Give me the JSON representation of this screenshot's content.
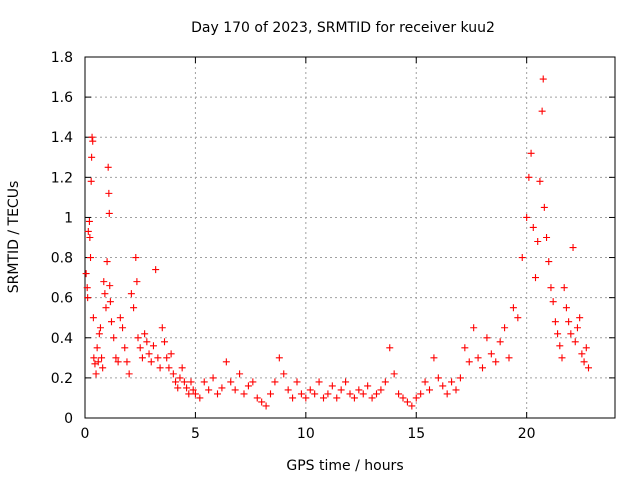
{
  "chart_data": {
    "type": "scatter",
    "title": "Day 170 of 2023, SRMTID for receiver kuu2",
    "xlabel": "GPS time / hours",
    "ylabel": "SRMTID / TECUs",
    "xlim": [
      0,
      24
    ],
    "ylim": [
      0,
      1.8
    ],
    "xticks": [
      0,
      5,
      10,
      15,
      20
    ],
    "xtick_labels": [
      "0",
      "5",
      "10",
      "15",
      "20"
    ],
    "yticks": [
      0,
      0.2,
      0.4,
      0.6,
      0.8,
      1,
      1.2,
      1.4,
      1.6,
      1.8
    ],
    "ytick_labels": [
      "0",
      "0.2",
      "0.4",
      "0.6",
      "0.8",
      "1",
      "1.2",
      "1.4",
      "1.6",
      "1.8"
    ],
    "grid": true,
    "marker": "+",
    "color": "#ff0000",
    "series": [
      {
        "name": "SRMTID",
        "points": [
          [
            0.05,
            0.72
          ],
          [
            0.1,
            0.65
          ],
          [
            0.12,
            0.6
          ],
          [
            0.15,
            0.93
          ],
          [
            0.2,
            0.98
          ],
          [
            0.22,
            0.9
          ],
          [
            0.25,
            0.8
          ],
          [
            0.28,
            1.18
          ],
          [
            0.3,
            1.3
          ],
          [
            0.32,
            1.4
          ],
          [
            0.35,
            1.38
          ],
          [
            0.38,
            0.5
          ],
          [
            0.4,
            0.3
          ],
          [
            0.45,
            0.27
          ],
          [
            0.5,
            0.22
          ],
          [
            0.55,
            0.35
          ],
          [
            0.6,
            0.28
          ],
          [
            0.65,
            0.42
          ],
          [
            0.7,
            0.45
          ],
          [
            0.75,
            0.3
          ],
          [
            0.8,
            0.25
          ],
          [
            0.85,
            0.68
          ],
          [
            0.9,
            0.62
          ],
          [
            0.95,
            0.55
          ],
          [
            1.0,
            0.78
          ],
          [
            1.05,
            1.25
          ],
          [
            1.08,
            1.12
          ],
          [
            1.1,
            1.02
          ],
          [
            1.12,
            0.66
          ],
          [
            1.15,
            0.58
          ],
          [
            1.2,
            0.48
          ],
          [
            1.3,
            0.4
          ],
          [
            1.4,
            0.3
          ],
          [
            1.5,
            0.28
          ],
          [
            1.6,
            0.5
          ],
          [
            1.7,
            0.45
          ],
          [
            1.8,
            0.35
          ],
          [
            1.9,
            0.28
          ],
          [
            2.0,
            0.22
          ],
          [
            2.1,
            0.62
          ],
          [
            2.2,
            0.55
          ],
          [
            2.3,
            0.8
          ],
          [
            2.35,
            0.68
          ],
          [
            2.4,
            0.4
          ],
          [
            2.5,
            0.35
          ],
          [
            2.6,
            0.3
          ],
          [
            2.7,
            0.42
          ],
          [
            2.8,
            0.38
          ],
          [
            2.9,
            0.32
          ],
          [
            3.0,
            0.28
          ],
          [
            3.1,
            0.36
          ],
          [
            3.2,
            0.74
          ],
          [
            3.3,
            0.3
          ],
          [
            3.4,
            0.25
          ],
          [
            3.5,
            0.45
          ],
          [
            3.6,
            0.38
          ],
          [
            3.7,
            0.3
          ],
          [
            3.8,
            0.25
          ],
          [
            3.9,
            0.32
          ],
          [
            4.0,
            0.22
          ],
          [
            4.1,
            0.18
          ],
          [
            4.2,
            0.15
          ],
          [
            4.3,
            0.2
          ],
          [
            4.4,
            0.25
          ],
          [
            4.5,
            0.18
          ],
          [
            4.6,
            0.15
          ],
          [
            4.7,
            0.12
          ],
          [
            4.8,
            0.18
          ],
          [
            4.9,
            0.14
          ],
          [
            5.0,
            0.12
          ],
          [
            5.2,
            0.1
          ],
          [
            5.4,
            0.18
          ],
          [
            5.6,
            0.14
          ],
          [
            5.8,
            0.2
          ],
          [
            6.0,
            0.12
          ],
          [
            6.2,
            0.15
          ],
          [
            6.4,
            0.28
          ],
          [
            6.6,
            0.18
          ],
          [
            6.8,
            0.14
          ],
          [
            7.0,
            0.22
          ],
          [
            7.2,
            0.12
          ],
          [
            7.4,
            0.16
          ],
          [
            7.6,
            0.18
          ],
          [
            7.8,
            0.1
          ],
          [
            8.0,
            0.08
          ],
          [
            8.2,
            0.06
          ],
          [
            8.4,
            0.12
          ],
          [
            8.6,
            0.18
          ],
          [
            8.8,
            0.3
          ],
          [
            9.0,
            0.22
          ],
          [
            9.2,
            0.14
          ],
          [
            9.4,
            0.1
          ],
          [
            9.6,
            0.18
          ],
          [
            9.8,
            0.12
          ],
          [
            10.0,
            0.1
          ],
          [
            10.2,
            0.14
          ],
          [
            10.4,
            0.12
          ],
          [
            10.6,
            0.18
          ],
          [
            10.8,
            0.1
          ],
          [
            11.0,
            0.12
          ],
          [
            11.2,
            0.16
          ],
          [
            11.4,
            0.1
          ],
          [
            11.6,
            0.14
          ],
          [
            11.8,
            0.18
          ],
          [
            12.0,
            0.12
          ],
          [
            12.2,
            0.1
          ],
          [
            12.4,
            0.14
          ],
          [
            12.6,
            0.12
          ],
          [
            12.8,
            0.16
          ],
          [
            13.0,
            0.1
          ],
          [
            13.2,
            0.12
          ],
          [
            13.4,
            0.14
          ],
          [
            13.6,
            0.18
          ],
          [
            13.8,
            0.35
          ],
          [
            14.0,
            0.22
          ],
          [
            14.2,
            0.12
          ],
          [
            14.4,
            0.1
          ],
          [
            14.6,
            0.08
          ],
          [
            14.8,
            0.06
          ],
          [
            15.0,
            0.1
          ],
          [
            15.2,
            0.12
          ],
          [
            15.4,
            0.18
          ],
          [
            15.6,
            0.14
          ],
          [
            15.8,
            0.3
          ],
          [
            16.0,
            0.2
          ],
          [
            16.2,
            0.16
          ],
          [
            16.4,
            0.12
          ],
          [
            16.6,
            0.18
          ],
          [
            16.8,
            0.14
          ],
          [
            17.0,
            0.2
          ],
          [
            17.2,
            0.35
          ],
          [
            17.4,
            0.28
          ],
          [
            17.6,
            0.45
          ],
          [
            17.8,
            0.3
          ],
          [
            18.0,
            0.25
          ],
          [
            18.2,
            0.4
          ],
          [
            18.4,
            0.32
          ],
          [
            18.6,
            0.28
          ],
          [
            18.8,
            0.38
          ],
          [
            19.0,
            0.45
          ],
          [
            19.2,
            0.3
          ],
          [
            19.4,
            0.55
          ],
          [
            19.6,
            0.5
          ],
          [
            19.8,
            0.8
          ],
          [
            20.0,
            1.0
          ],
          [
            20.1,
            1.2
          ],
          [
            20.2,
            1.32
          ],
          [
            20.3,
            0.95
          ],
          [
            20.4,
            0.7
          ],
          [
            20.5,
            0.88
          ],
          [
            20.6,
            1.18
          ],
          [
            20.7,
            1.53
          ],
          [
            20.75,
            1.69
          ],
          [
            20.8,
            1.05
          ],
          [
            20.9,
            0.9
          ],
          [
            21.0,
            0.78
          ],
          [
            21.1,
            0.65
          ],
          [
            21.2,
            0.58
          ],
          [
            21.3,
            0.48
          ],
          [
            21.4,
            0.42
          ],
          [
            21.5,
            0.36
          ],
          [
            21.6,
            0.3
          ],
          [
            21.7,
            0.65
          ],
          [
            21.8,
            0.55
          ],
          [
            21.9,
            0.48
          ],
          [
            22.0,
            0.42
          ],
          [
            22.1,
            0.85
          ],
          [
            22.2,
            0.38
          ],
          [
            22.3,
            0.45
          ],
          [
            22.4,
            0.5
          ],
          [
            22.5,
            0.32
          ],
          [
            22.6,
            0.28
          ],
          [
            22.7,
            0.35
          ],
          [
            22.8,
            0.25
          ]
        ]
      }
    ]
  }
}
